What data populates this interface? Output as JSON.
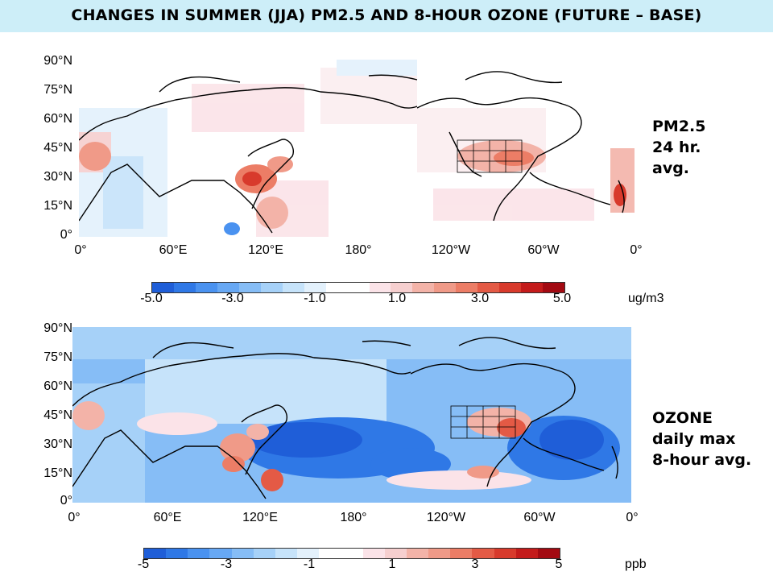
{
  "title": "CHANGES IN SUMMER (JJA) PM2.5 AND 8-HOUR OZONE (FUTURE – BASE)",
  "lat_labels": [
    "90°N",
    "75°N",
    "60°N",
    "45°N",
    "30°N",
    "15°N",
    "0°"
  ],
  "lon_labels": [
    "0°",
    "60°E",
    "120°E",
    "180°",
    "120°W",
    "60°W",
    "0°"
  ],
  "pm25": {
    "label_lines": [
      "PM2.5",
      "24 hr.",
      "avg."
    ],
    "colorbar_ticks": [
      "-5.0",
      "-3.0",
      "-1.0",
      "1.0",
      "3.0",
      "5.0"
    ],
    "unit": "ug/m3"
  },
  "ozone": {
    "label_lines": [
      "OZONE",
      "daily max",
      "8-hour avg."
    ],
    "colorbar_ticks": [
      "-5",
      "-3",
      "-1",
      "1",
      "3",
      "5"
    ],
    "unit": "ppb"
  },
  "colors": {
    "title_bg": "#cdeef8",
    "scale": [
      "#1f5ed8",
      "#2f78e6",
      "#4a92f0",
      "#67a8f4",
      "#86bdf6",
      "#a6d1f8",
      "#c6e3fa",
      "#e3f1fc",
      "#ffffff",
      "#ffffff",
      "#fbe3e8",
      "#f6cfcf",
      "#f3b3a8",
      "#f09a88",
      "#ec7d66",
      "#e45a45",
      "#d83a2c",
      "#c41b1b",
      "#a30a12"
    ],
    "ocean_neg": "#2f6fe0",
    "land_line": "#000000"
  }
}
